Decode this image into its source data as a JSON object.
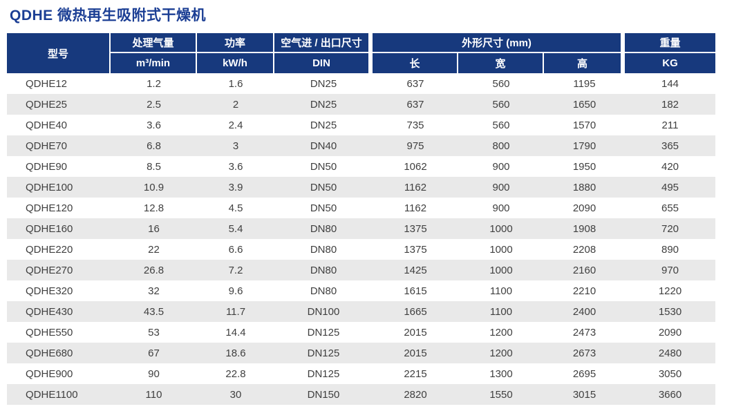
{
  "title": "QDHE 微热再生吸附式干燥机",
  "colors": {
    "header_bg": "#17397D",
    "title": "#1B3E94",
    "row_alt": "#E9E9E9",
    "cell_text": "#3F3F3F"
  },
  "table": {
    "header": {
      "model": "型号",
      "flow_top": "处理气量",
      "flow_unit": "m³/min",
      "power_top": "功率",
      "power_unit": "kW/h",
      "port_top": "空气进 / 出口尺寸",
      "port_unit": "DIN",
      "dims_top": "外形尺寸 (mm)",
      "dims_cols": [
        "长",
        "宽",
        "高"
      ],
      "weight_top": "重量",
      "weight_unit": "KG"
    },
    "rows": [
      {
        "model": "QDHE12",
        "flow": "1.2",
        "power": "1.6",
        "port": "DN25",
        "length": "637",
        "width": "560",
        "height": "1195",
        "weight": "144"
      },
      {
        "model": "QDHE25",
        "flow": "2.5",
        "power": "2",
        "port": "DN25",
        "length": "637",
        "width": "560",
        "height": "1650",
        "weight": "182"
      },
      {
        "model": "QDHE40",
        "flow": "3.6",
        "power": "2.4",
        "port": "DN25",
        "length": "735",
        "width": "560",
        "height": "1570",
        "weight": "211"
      },
      {
        "model": "QDHE70",
        "flow": "6.8",
        "power": "3",
        "port": "DN40",
        "length": "975",
        "width": "800",
        "height": "1790",
        "weight": "365"
      },
      {
        "model": "QDHE90",
        "flow": "8.5",
        "power": "3.6",
        "port": "DN50",
        "length": "1062",
        "width": "900",
        "height": "1950",
        "weight": "420"
      },
      {
        "model": "QDHE100",
        "flow": "10.9",
        "power": "3.9",
        "port": "DN50",
        "length": "1162",
        "width": "900",
        "height": "1880",
        "weight": "495"
      },
      {
        "model": "QDHE120",
        "flow": "12.8",
        "power": "4.5",
        "port": "DN50",
        "length": "1162",
        "width": "900",
        "height": "2090",
        "weight": "655"
      },
      {
        "model": "QDHE160",
        "flow": "16",
        "power": "5.4",
        "port": "DN80",
        "length": "1375",
        "width": "1000",
        "height": "1908",
        "weight": "720"
      },
      {
        "model": "QDHE220",
        "flow": "22",
        "power": "6.6",
        "port": "DN80",
        "length": "1375",
        "width": "1000",
        "height": "2208",
        "weight": "890"
      },
      {
        "model": "QDHE270",
        "flow": "26.8",
        "power": "7.2",
        "port": "DN80",
        "length": "1425",
        "width": "1000",
        "height": "2160",
        "weight": "970"
      },
      {
        "model": "QDHE320",
        "flow": "32",
        "power": "9.6",
        "port": "DN80",
        "length": "1615",
        "width": "1100",
        "height": "2210",
        "weight": "1220"
      },
      {
        "model": "QDHE430",
        "flow": "43.5",
        "power": "11.7",
        "port": "DN100",
        "length": "1665",
        "width": "1100",
        "height": "2400",
        "weight": "1530"
      },
      {
        "model": "QDHE550",
        "flow": "53",
        "power": "14.4",
        "port": "DN125",
        "length": "2015",
        "width": "1200",
        "height": "2473",
        "weight": "2090"
      },
      {
        "model": "QDHE680",
        "flow": "67",
        "power": "18.6",
        "port": "DN125",
        "length": "2015",
        "width": "1200",
        "height": "2673",
        "weight": "2480"
      },
      {
        "model": "QDHE900",
        "flow": "90",
        "power": "22.8",
        "port": "DN125",
        "length": "2215",
        "width": "1300",
        "height": "2695",
        "weight": "3050"
      },
      {
        "model": "QDHE1100",
        "flow": "110",
        "power": "30",
        "port": "DN150",
        "length": "2820",
        "width": "1550",
        "height": "3015",
        "weight": "3660"
      }
    ]
  }
}
